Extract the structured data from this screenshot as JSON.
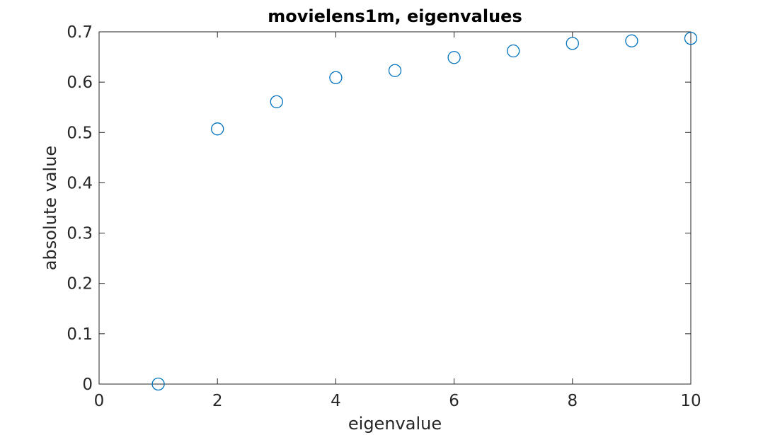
{
  "chart_data": {
    "type": "scatter",
    "title": "movielens1m, eigenvalues",
    "xlabel": "eigenvalue",
    "ylabel": "absolute value",
    "xlim": [
      0,
      10
    ],
    "ylim": [
      0,
      0.7
    ],
    "xticks": [
      0,
      2,
      4,
      6,
      8,
      10
    ],
    "xtick_labels": [
      "0",
      "2",
      "4",
      "6",
      "8",
      "10"
    ],
    "yticks": [
      0,
      0.1,
      0.2,
      0.3,
      0.4,
      0.5,
      0.6,
      0.7
    ],
    "ytick_labels": [
      "0",
      "0.1",
      "0.2",
      "0.3",
      "0.4",
      "0.5",
      "0.6",
      "0.7"
    ],
    "grid": false,
    "marker": "circle-open",
    "marker_color": "#0072BD",
    "axis_color": "#262626",
    "series": [
      {
        "x": [
          1,
          2,
          3,
          4,
          5,
          6,
          7,
          8,
          9,
          10
        ],
        "y": [
          0.0,
          0.507,
          0.561,
          0.609,
          0.623,
          0.649,
          0.662,
          0.677,
          0.682,
          0.687
        ]
      }
    ]
  }
}
